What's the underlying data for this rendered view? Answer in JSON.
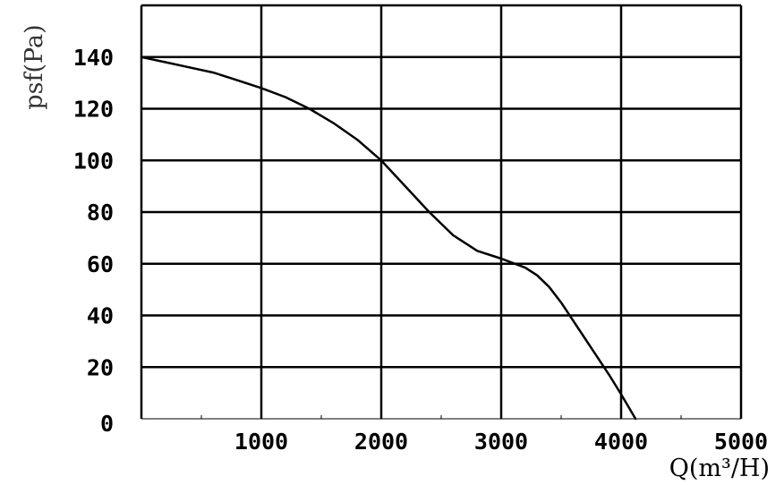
{
  "chart_data": {
    "type": "line",
    "title": "",
    "xlabel": "Q(m³/H)",
    "ylabel": "psf(Pa)",
    "xlim": [
      0,
      5000
    ],
    "ylim": [
      0,
      160
    ],
    "x_ticks": [
      1000,
      2000,
      3000,
      4000,
      5000
    ],
    "x_tick_labels": [
      "1000",
      "2000",
      "3000",
      "4000",
      "5000"
    ],
    "y_ticks": [
      0,
      20,
      40,
      60,
      80,
      100,
      120,
      140
    ],
    "y_tick_labels": [
      "0",
      "20",
      "40",
      "60",
      "80",
      "100",
      "120",
      "140"
    ],
    "grid": true,
    "series": [
      {
        "x": [
          0,
          200,
          400,
          600,
          800,
          1000,
          1200,
          1400,
          1600,
          1800,
          2000,
          2200,
          2400,
          2600,
          2800,
          3000,
          3200,
          3300,
          3400,
          3500,
          3600,
          3700,
          3800,
          3900,
          4000,
          4120
        ],
        "values": [
          140,
          138,
          136,
          134,
          131,
          128,
          124.5,
          120,
          114.5,
          108,
          100,
          90,
          80,
          71,
          65,
          62,
          58.5,
          55.5,
          51,
          45,
          38,
          31,
          24,
          17,
          9.5,
          0
        ],
        "color": "#000000"
      }
    ]
  }
}
